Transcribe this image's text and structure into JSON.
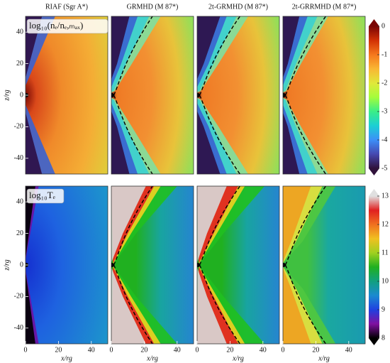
{
  "chart_data": [
    {
      "type": "heatmap",
      "title": "RIAF (Sgr A*)",
      "annotation": "log₁₀(nₑ/nₑ,ₘₐₓ)",
      "ylabel": "z/rg",
      "xlim": [
        0,
        50
      ],
      "ylim": [
        -50,
        50
      ],
      "yticks": [
        -40,
        -20,
        0,
        20,
        40
      ]
    },
    {
      "type": "heatmap",
      "title": "GRMHD (M 87*)",
      "xlim": [
        0,
        50
      ],
      "ylim": [
        -50,
        50
      ]
    },
    {
      "type": "heatmap",
      "title": "2t-GRMHD (M 87*)",
      "xlim": [
        0,
        50
      ],
      "ylim": [
        -50,
        50
      ]
    },
    {
      "type": "heatmap",
      "title": "2t-GRRMHD (M 87*)",
      "xlim": [
        0,
        50
      ],
      "ylim": [
        -50,
        50
      ],
      "colorbar": {
        "zlim": [
          -5,
          0
        ],
        "zticks": [
          -5,
          -4,
          -3,
          -2,
          -1,
          0
        ]
      }
    },
    {
      "type": "heatmap",
      "annotation": "log₁₀Tₑ",
      "xlabel": "x/rg",
      "ylabel": "z/rg",
      "xlim": [
        0,
        50
      ],
      "ylim": [
        -50,
        50
      ],
      "xticks": [
        0,
        20,
        40
      ],
      "yticks": [
        -40,
        -20,
        0,
        20,
        40
      ]
    },
    {
      "type": "heatmap",
      "xlabel": "x/rg",
      "xlim": [
        0,
        50
      ],
      "ylim": [
        -50,
        50
      ],
      "xticks": [
        0,
        20,
        40
      ]
    },
    {
      "type": "heatmap",
      "xlabel": "x/rg",
      "xlim": [
        0,
        50
      ],
      "ylim": [
        -50,
        50
      ],
      "xticks": [
        0,
        20,
        40
      ]
    },
    {
      "type": "heatmap",
      "xlabel": "x/rg",
      "xlim": [
        0,
        50
      ],
      "ylim": [
        -50,
        50
      ],
      "xticks": [
        0,
        20,
        40
      ],
      "colorbar": {
        "zlim": [
          8,
          13
        ],
        "zticks": [
          8,
          9,
          10,
          11,
          12,
          13
        ]
      }
    }
  ]
}
